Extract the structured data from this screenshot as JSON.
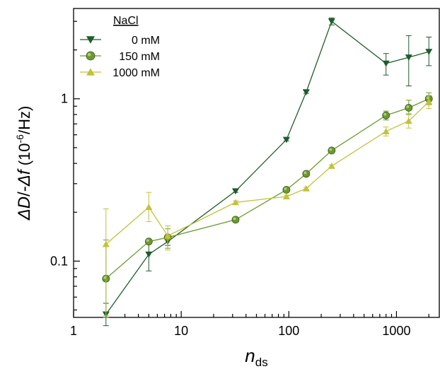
{
  "chart_data": {
    "type": "line",
    "xlabel": "n",
    "xlabel_sub": "ds",
    "ylabel_parts": {
      "delta_d": "ΔD",
      "slash_minus": "/-",
      "delta_f": "Δf",
      "paren_open": " (10",
      "exponent": "-6",
      "unit_tail": "/Hz)"
    },
    "x_scale": "log",
    "y_scale": "log",
    "xlim": [
      1,
      2500
    ],
    "ylim": [
      0.045,
      3.6
    ],
    "x_ticks": [
      {
        "value": 1,
        "label": "1"
      },
      {
        "value": 10,
        "label": "10"
      },
      {
        "value": 100,
        "label": "100"
      },
      {
        "value": 1000,
        "label": "1000"
      }
    ],
    "y_ticks": [
      {
        "value": 0.1,
        "label": "0.1"
      },
      {
        "value": 1,
        "label": "1"
      }
    ],
    "grid": false,
    "legend": {
      "title": "NaCl",
      "position": "top-left"
    },
    "series": [
      {
        "name": "0 mM",
        "color": "#1e5c2a",
        "marker": "triangle-down",
        "points": [
          {
            "x": 2,
            "y": 0.047,
            "err_low": 0.04,
            "err_high": 0.055
          },
          {
            "x": 5,
            "y": 0.11,
            "err_low": 0.087,
            "err_high": 0.133
          },
          {
            "x": 7.5,
            "y": 0.132,
            "err_low": 0.125,
            "err_high": 0.139
          },
          {
            "x": 32,
            "y": 0.27,
            "err_low": 0.265,
            "err_high": 0.275
          },
          {
            "x": 95,
            "y": 0.56,
            "err_low": 0.55,
            "err_high": 0.57
          },
          {
            "x": 145,
            "y": 1.1,
            "err_low": 1.08,
            "err_high": 1.12
          },
          {
            "x": 250,
            "y": 3.0,
            "err_low": 2.85,
            "err_high": 3.15
          },
          {
            "x": 800,
            "y": 1.65,
            "err_low": 1.4,
            "err_high": 1.9
          },
          {
            "x": 1300,
            "y": 1.8,
            "err_low": 1.2,
            "err_high": 2.45
          },
          {
            "x": 2000,
            "y": 1.95,
            "err_low": 1.6,
            "err_high": 2.4
          }
        ]
      },
      {
        "name": "150 mM",
        "color": "#6b9a2e",
        "marker": "circle",
        "points": [
          {
            "x": 2,
            "y": 0.078,
            "err_low": 0.045,
            "err_high": 0.135
          },
          {
            "x": 5,
            "y": 0.132,
            "err_low": 0.128,
            "err_high": 0.136
          },
          {
            "x": 7.5,
            "y": 0.14,
            "err_low": 0.12,
            "err_high": 0.158
          },
          {
            "x": 32,
            "y": 0.18,
            "err_low": 0.177,
            "err_high": 0.183
          },
          {
            "x": 95,
            "y": 0.275,
            "err_low": 0.27,
            "err_high": 0.28
          },
          {
            "x": 145,
            "y": 0.345,
            "err_low": 0.34,
            "err_high": 0.35
          },
          {
            "x": 250,
            "y": 0.48,
            "err_low": 0.47,
            "err_high": 0.49
          },
          {
            "x": 800,
            "y": 0.79,
            "err_low": 0.74,
            "err_high": 0.84
          },
          {
            "x": 1300,
            "y": 0.88,
            "err_low": 0.8,
            "err_high": 0.98
          },
          {
            "x": 2000,
            "y": 1.0,
            "err_low": 0.92,
            "err_high": 1.09
          }
        ]
      },
      {
        "name": "1000 mM",
        "color": "#c2c23a",
        "marker": "triangle-up",
        "points": [
          {
            "x": 2,
            "y": 0.127,
            "err_low": 0.046,
            "err_high": 0.21
          },
          {
            "x": 5,
            "y": 0.215,
            "err_low": 0.175,
            "err_high": 0.265
          },
          {
            "x": 7.5,
            "y": 0.143,
            "err_low": 0.117,
            "err_high": 0.165
          },
          {
            "x": 32,
            "y": 0.23,
            "err_low": 0.225,
            "err_high": 0.235
          },
          {
            "x": 95,
            "y": 0.25,
            "err_low": 0.245,
            "err_high": 0.255
          },
          {
            "x": 145,
            "y": 0.28,
            "err_low": 0.275,
            "err_high": 0.285
          },
          {
            "x": 250,
            "y": 0.385,
            "err_low": 0.378,
            "err_high": 0.392
          },
          {
            "x": 800,
            "y": 0.63,
            "err_low": 0.59,
            "err_high": 0.67
          },
          {
            "x": 1300,
            "y": 0.73,
            "err_low": 0.66,
            "err_high": 0.81
          },
          {
            "x": 2000,
            "y": 0.96,
            "err_low": 0.87,
            "err_high": 1.05
          }
        ]
      }
    ]
  }
}
